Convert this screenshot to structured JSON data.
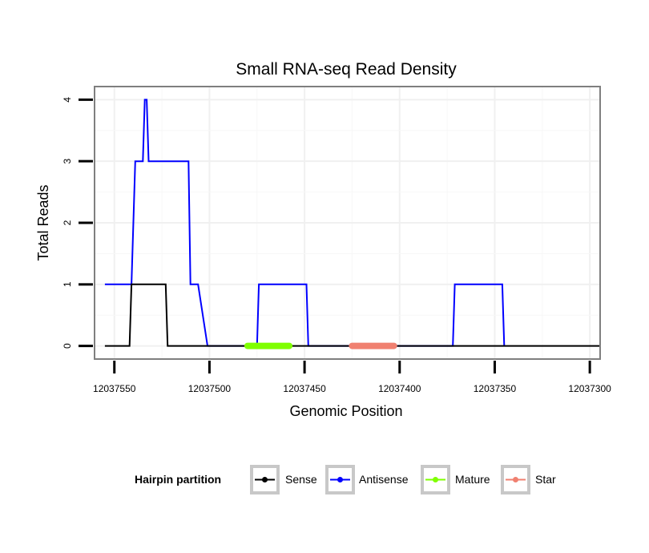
{
  "chart_data": {
    "type": "line",
    "title": "Small RNA-seq Read Density",
    "xlabel": "Genomic Position",
    "ylabel": "Total Reads",
    "xlim": [
      12037560,
      12037295
    ],
    "ylim": [
      -0.2,
      4.2
    ],
    "x_reversed": true,
    "x_ticks": [
      12037550,
      12037500,
      12037450,
      12037400,
      12037350,
      12037300
    ],
    "x_tick_labels": [
      "12037550",
      "12037500",
      "12037450",
      "12037400",
      "12037350",
      "12037300"
    ],
    "y_ticks": [
      0,
      1,
      2,
      3,
      4
    ],
    "y_tick_labels": [
      "0",
      "1",
      "2",
      "3",
      "4"
    ],
    "grid": true,
    "series": [
      {
        "name": "Antisense",
        "color": "#0000ff",
        "x": [
          12037555,
          12037541,
          12037539,
          12037535,
          12037534,
          12037533,
          12037532,
          12037531,
          12037511,
          12037510,
          12037507,
          12037506,
          12037501,
          12037475,
          12037474,
          12037449,
          12037448,
          12037372,
          12037371,
          12037346,
          12037345
        ],
        "y": [
          1,
          1,
          3,
          3,
          4,
          4,
          3,
          3,
          3,
          1,
          1,
          1,
          0,
          0,
          1,
          1,
          0,
          0,
          1,
          1,
          0
        ]
      },
      {
        "name": "Sense",
        "color": "#000000",
        "x": [
          12037555,
          12037542,
          12037541,
          12037523,
          12037522,
          12037295
        ],
        "y": [
          0,
          0,
          1,
          1,
          0,
          0
        ]
      },
      {
        "name": "Mature",
        "color": "#7fff00",
        "x": [
          12037480,
          12037458
        ],
        "y": [
          0,
          0
        ]
      },
      {
        "name": "Star",
        "color": "#f08070",
        "x": [
          12037425,
          12037403
        ],
        "y": [
          0,
          0
        ]
      }
    ],
    "legend": {
      "title": "Hairpin partition",
      "position": "bottom",
      "items": [
        {
          "label": "Sense",
          "color": "#000000"
        },
        {
          "label": "Antisense",
          "color": "#0000ff"
        },
        {
          "label": "Mature",
          "color": "#7fff00"
        },
        {
          "label": "Star",
          "color": "#f08070"
        }
      ]
    }
  }
}
